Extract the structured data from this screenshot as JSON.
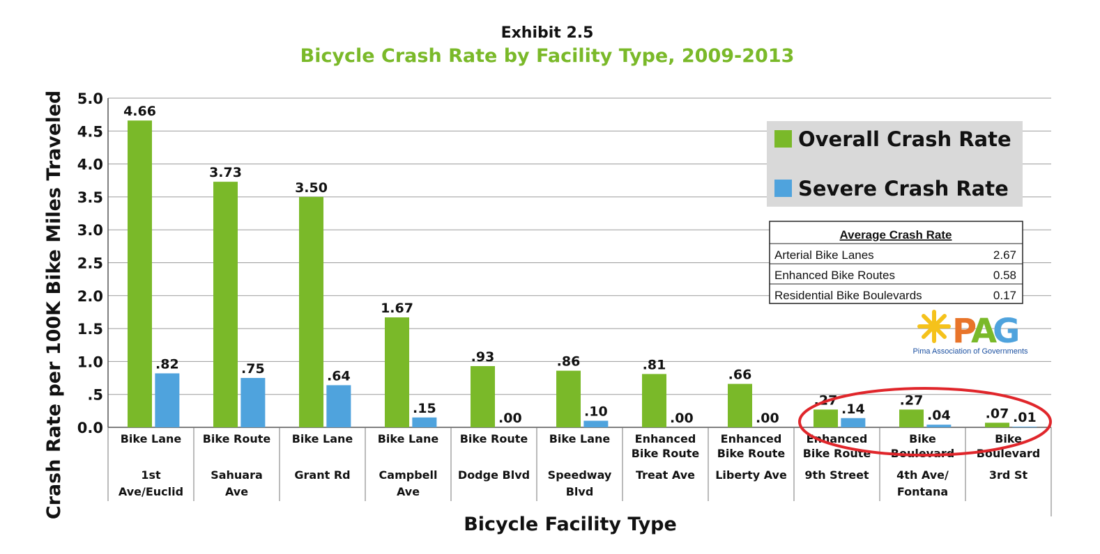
{
  "header": {
    "exhibit": "Exhibit 2.5",
    "title": "Bicycle Crash Rate by Facility Type, 2009-2013"
  },
  "chart_data": {
    "type": "bar",
    "ylabel": "Crash Rate per 100K Bike Miles Traveled",
    "xlabel": "Bicycle Facility Type",
    "ylim": [
      0,
      5
    ],
    "yticks": [
      {
        "value": 0,
        "label": "0.0"
      },
      {
        "value": 0.5,
        "label": ".5"
      },
      {
        "value": 1.0,
        "label": "1.0"
      },
      {
        "value": 1.5,
        "label": "1.5"
      },
      {
        "value": 2.0,
        "label": "2.0"
      },
      {
        "value": 2.5,
        "label": "2.5"
      },
      {
        "value": 3.0,
        "label": "3.0"
      },
      {
        "value": 3.5,
        "label": "3.5"
      },
      {
        "value": 4.0,
        "label": "4.0"
      },
      {
        "value": 4.5,
        "label": "4.5"
      },
      {
        "value": 5.0,
        "label": "5.0"
      }
    ],
    "grid": true,
    "legend_position": "top-right",
    "categories": [
      {
        "type": [
          "Bike Lane"
        ],
        "location": [
          "1st",
          "Ave/Euclid"
        ]
      },
      {
        "type": [
          "Bike Route"
        ],
        "location": [
          "Sahuara",
          "Ave"
        ]
      },
      {
        "type": [
          "Bike Lane"
        ],
        "location": [
          "Grant Rd"
        ]
      },
      {
        "type": [
          "Bike Lane"
        ],
        "location": [
          "Campbell",
          "Ave"
        ]
      },
      {
        "type": [
          "Bike Route"
        ],
        "location": [
          "Dodge Blvd"
        ]
      },
      {
        "type": [
          "Bike Lane"
        ],
        "location": [
          "Speedway",
          "Blvd"
        ]
      },
      {
        "type": [
          "Enhanced",
          "Bike Route"
        ],
        "location": [
          "Treat Ave"
        ]
      },
      {
        "type": [
          "Enhanced",
          "Bike Route"
        ],
        "location": [
          "Liberty Ave"
        ]
      },
      {
        "type": [
          "Enhanced",
          "Bike Route"
        ],
        "location": [
          "9th Street"
        ]
      },
      {
        "type": [
          "Bike",
          "Boulevard"
        ],
        "location": [
          "4th Ave/",
          "Fontana"
        ]
      },
      {
        "type": [
          "Bike",
          "Boulevard"
        ],
        "location": [
          "3rd St"
        ]
      }
    ],
    "series": [
      {
        "name": "Overall Crash Rate",
        "color": "#7ab929",
        "values": [
          4.66,
          3.73,
          3.5,
          1.67,
          0.93,
          0.86,
          0.81,
          0.66,
          0.27,
          0.27,
          0.07
        ],
        "labels": [
          "4.66",
          "3.73",
          "3.50",
          "1.67",
          ".93",
          ".86",
          ".81",
          ".66",
          ".27",
          ".27",
          ".07"
        ]
      },
      {
        "name": "Severe Crash Rate",
        "color": "#4fa3dd",
        "values": [
          0.82,
          0.75,
          0.64,
          0.15,
          0.0,
          0.1,
          0.0,
          0.0,
          0.14,
          0.04,
          0.01
        ],
        "labels": [
          ".82",
          ".75",
          ".64",
          ".15",
          ".00",
          ".10",
          ".00",
          ".00",
          ".14",
          ".04",
          ".01"
        ]
      }
    ],
    "highlight_color": "#e0262b"
  },
  "average_table": {
    "title": "Average Crash Rate",
    "rows": [
      {
        "label": "Arterial Bike Lanes",
        "value": "2.67"
      },
      {
        "label": "Enhanced Bike Routes",
        "value": "0.58"
      },
      {
        "label": "Residential Bike Boulevards",
        "value": "0.17"
      }
    ]
  },
  "logo": {
    "name": "Pima Association of Governments",
    "mark": "PAG",
    "colors": {
      "sun": "#f5c21b",
      "p": "#e8742a",
      "a": "#7ab929",
      "g": "#4fa3dd"
    }
  }
}
